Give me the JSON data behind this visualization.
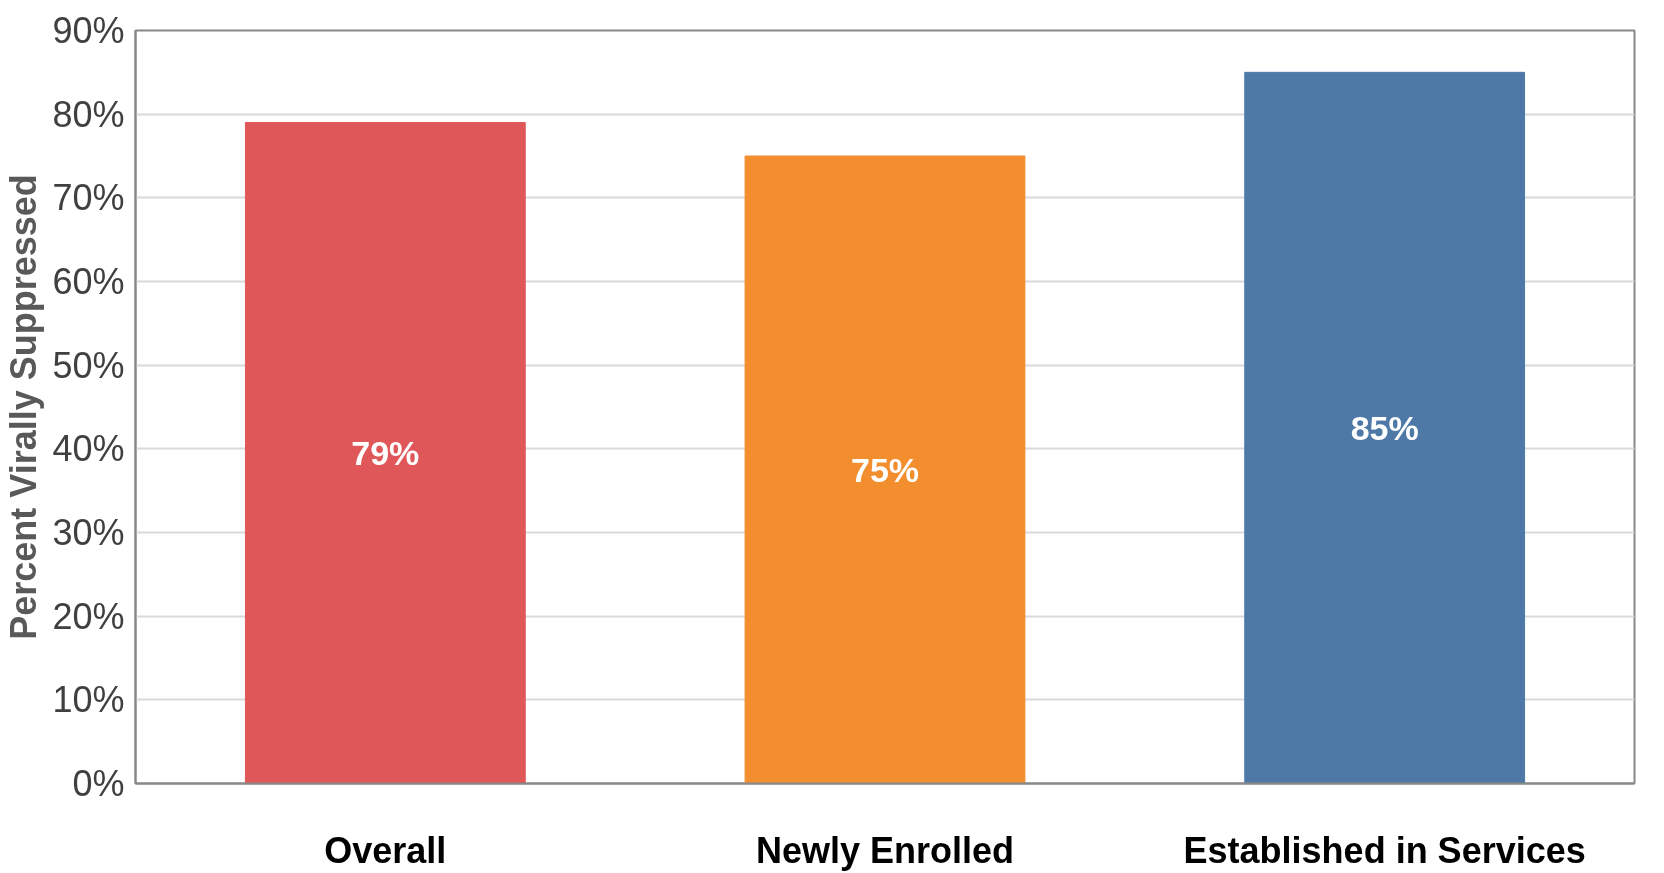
{
  "chart_data": {
    "type": "bar",
    "ylabel": "Percent Virally Suppressed",
    "categories": [
      "Overall",
      "Newly Enrolled",
      "Established in Services"
    ],
    "values": [
      79,
      75,
      85
    ],
    "colors": [
      "#e05759",
      "#f28e2e",
      "#4e79a7"
    ],
    "value_labels": [
      "79%",
      "75%",
      "85%"
    ],
    "ylim": [
      0,
      90
    ],
    "yticks": [
      {
        "value": 0,
        "label": "0%"
      },
      {
        "value": 10,
        "label": "10%"
      },
      {
        "value": 20,
        "label": "20%"
      },
      {
        "value": 30,
        "label": "30%"
      },
      {
        "value": 40,
        "label": "40%"
      },
      {
        "value": 50,
        "label": "50%"
      },
      {
        "value": 60,
        "label": "60%"
      },
      {
        "value": 70,
        "label": "70%"
      },
      {
        "value": 80,
        "label": "80%"
      },
      {
        "value": 90,
        "label": "90%"
      }
    ],
    "grid": "y"
  }
}
